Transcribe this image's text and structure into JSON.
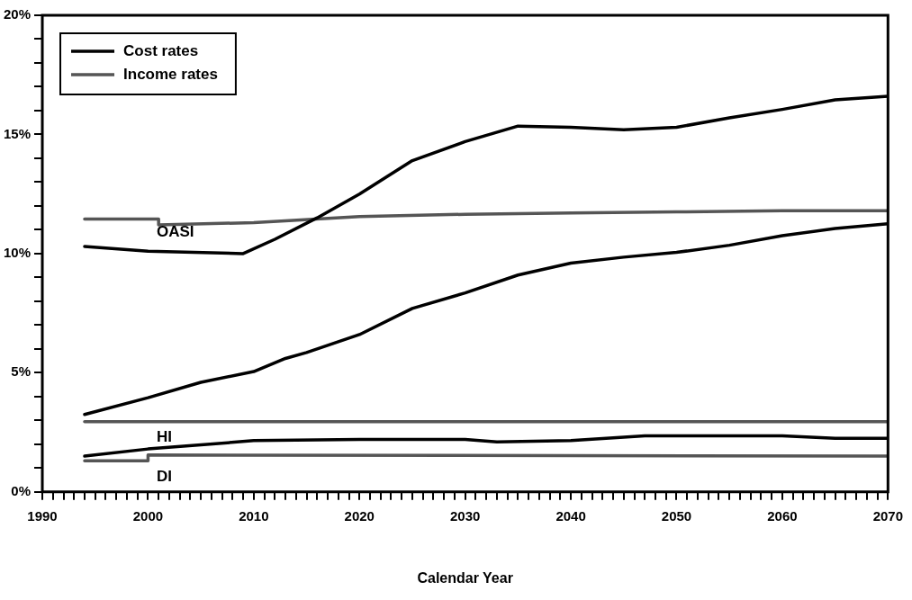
{
  "chart_data": {
    "type": "line",
    "xlabel": "Calendar Year",
    "xlim": [
      1990,
      2070
    ],
    "xticks": [
      1990,
      {
        "value": 1991,
        "label": null
      },
      {
        "value": 1992,
        "label": null
      },
      {
        "value": 1993,
        "label": null
      },
      {
        "value": 1994,
        "label": null
      },
      {
        "value": 1995,
        "label": null
      },
      {
        "value": 1996,
        "label": null
      },
      {
        "value": 1997,
        "label": null
      },
      {
        "value": 1998,
        "label": null
      },
      {
        "value": 1999,
        "label": null
      },
      2000,
      {
        "value": 2001,
        "label": null
      },
      {
        "value": 2002,
        "label": null
      },
      {
        "value": 2003,
        "label": null
      },
      {
        "value": 2004,
        "label": null
      },
      {
        "value": 2005,
        "label": null
      },
      {
        "value": 2006,
        "label": null
      },
      {
        "value": 2007,
        "label": null
      },
      {
        "value": 2008,
        "label": null
      },
      {
        "value": 2009,
        "label": null
      },
      2010,
      {
        "value": 2011,
        "label": null
      },
      {
        "value": 2012,
        "label": null
      },
      {
        "value": 2013,
        "label": null
      },
      {
        "value": 2014,
        "label": null
      },
      {
        "value": 2015,
        "label": null
      },
      {
        "value": 2016,
        "label": null
      },
      {
        "value": 2017,
        "label": null
      },
      {
        "value": 2018,
        "label": null
      },
      {
        "value": 2019,
        "label": null
      },
      2020,
      {
        "value": 2021,
        "label": null
      },
      {
        "value": 2022,
        "label": null
      },
      {
        "value": 2023,
        "label": null
      },
      {
        "value": 2024,
        "label": null
      },
      {
        "value": 2025,
        "label": null
      },
      {
        "value": 2026,
        "label": null
      },
      {
        "value": 2027,
        "label": null
      },
      {
        "value": 2028,
        "label": null
      },
      {
        "value": 2029,
        "label": null
      },
      2030,
      {
        "value": 2031,
        "label": null
      },
      {
        "value": 2032,
        "label": null
      },
      {
        "value": 2033,
        "label": null
      },
      {
        "value": 2034,
        "label": null
      },
      {
        "value": 2035,
        "label": null
      },
      {
        "value": 2036,
        "label": null
      },
      {
        "value": 2037,
        "label": null
      },
      {
        "value": 2038,
        "label": null
      },
      {
        "value": 2039,
        "label": null
      },
      2040,
      {
        "value": 2041,
        "label": null
      },
      {
        "value": 2042,
        "label": null
      },
      {
        "value": 2043,
        "label": null
      },
      {
        "value": 2044,
        "label": null
      },
      {
        "value": 2045,
        "label": null
      },
      {
        "value": 2046,
        "label": null
      },
      {
        "value": 2047,
        "label": null
      },
      {
        "value": 2048,
        "label": null
      },
      {
        "value": 2049,
        "label": null
      },
      2050,
      {
        "value": 2051,
        "label": null
      },
      {
        "value": 2052,
        "label": null
      },
      {
        "value": 2053,
        "label": null
      },
      {
        "value": 2054,
        "label": null
      },
      {
        "value": 2055,
        "label": null
      },
      {
        "value": 2056,
        "label": null
      },
      {
        "value": 2057,
        "label": null
      },
      {
        "value": 2058,
        "label": null
      },
      {
        "value": 2059,
        "label": null
      },
      2060,
      {
        "value": 2061,
        "label": null
      },
      {
        "value": 2062,
        "label": null
      },
      {
        "value": 2063,
        "label": null
      },
      {
        "value": 2064,
        "label": null
      },
      {
        "value": 2065,
        "label": null
      },
      {
        "value": 2066,
        "label": null
      },
      {
        "value": 2067,
        "label": null
      },
      {
        "value": 2068,
        "label": null
      },
      {
        "value": 2069,
        "label": null
      },
      2070
    ],
    "ylim": [
      0,
      20
    ],
    "yticks": [
      {
        "value": 0,
        "label": "0%"
      },
      {
        "value": 1,
        "label": null
      },
      {
        "value": 2,
        "label": null
      },
      {
        "value": 3,
        "label": null
      },
      {
        "value": 4,
        "label": null
      },
      {
        "value": 5,
        "label": "5%"
      },
      {
        "value": 6,
        "label": null
      },
      {
        "value": 7,
        "label": null
      },
      {
        "value": 8,
        "label": null
      },
      {
        "value": 9,
        "label": null
      },
      {
        "value": 10,
        "label": "10%"
      },
      {
        "value": 11,
        "label": null
      },
      {
        "value": 12,
        "label": null
      },
      {
        "value": 13,
        "label": null
      },
      {
        "value": 14,
        "label": null
      },
      {
        "value": 15,
        "label": "15%"
      },
      {
        "value": 16,
        "label": null
      },
      {
        "value": 17,
        "label": null
      },
      {
        "value": 18,
        "label": null
      },
      {
        "value": 19,
        "label": null
      },
      {
        "value": 20,
        "label": "20%"
      }
    ],
    "grid": false,
    "legend": "top left",
    "marker": "none",
    "line_style": "solid",
    "series": [
      {
        "name": "Cost rates",
        "color": "#000000",
        "x": [
          1994,
          2000,
          2009,
          2012,
          2016,
          2020,
          2025,
          2030,
          2035,
          2040,
          2045,
          2050,
          2055,
          2060,
          2065,
          2070
        ],
        "values": [
          10.3,
          10.1,
          10.0,
          10.6,
          11.5,
          12.5,
          13.9,
          14.7,
          15.35,
          15.3,
          15.2,
          15.3,
          15.7,
          16.05,
          16.45,
          16.6
        ]
      },
      {
        "name": "Income rates",
        "color": "#555555",
        "x": [
          1994,
          2001,
          2001,
          2010,
          2020,
          2030,
          2040,
          2050,
          2060,
          2070
        ],
        "values": [
          11.45,
          11.45,
          11.2,
          11.3,
          11.55,
          11.65,
          11.7,
          11.75,
          11.8,
          11.8
        ]
      },
      {
        "color": "#000000",
        "x": [
          1994,
          2000,
          2005,
          2010,
          2013,
          2015,
          2020,
          2025,
          2030,
          2035,
          2040,
          2045,
          2050,
          2055,
          2060,
          2065,
          2070
        ],
        "values": [
          3.25,
          3.95,
          4.6,
          5.05,
          5.6,
          5.85,
          6.6,
          7.7,
          8.35,
          9.1,
          9.6,
          9.85,
          10.05,
          10.35,
          10.75,
          11.05,
          11.25
        ]
      },
      {
        "color": "#555555",
        "x": [
          1994,
          2070
        ],
        "values": [
          2.95,
          2.95
        ]
      },
      {
        "color": "#000000",
        "x": [
          1994,
          2000,
          2010,
          2020,
          2030,
          2033,
          2040,
          2047,
          2060,
          2065,
          2070
        ],
        "values": [
          1.5,
          1.8,
          2.15,
          2.2,
          2.2,
          2.1,
          2.15,
          2.35,
          2.35,
          2.25,
          2.25
        ]
      },
      {
        "color": "#555555",
        "x": [
          1994,
          2000,
          2000,
          2070
        ],
        "values": [
          1.3,
          1.3,
          1.55,
          1.5
        ]
      }
    ],
    "annotations": [
      "OASI",
      "HI",
      "DI"
    ]
  }
}
